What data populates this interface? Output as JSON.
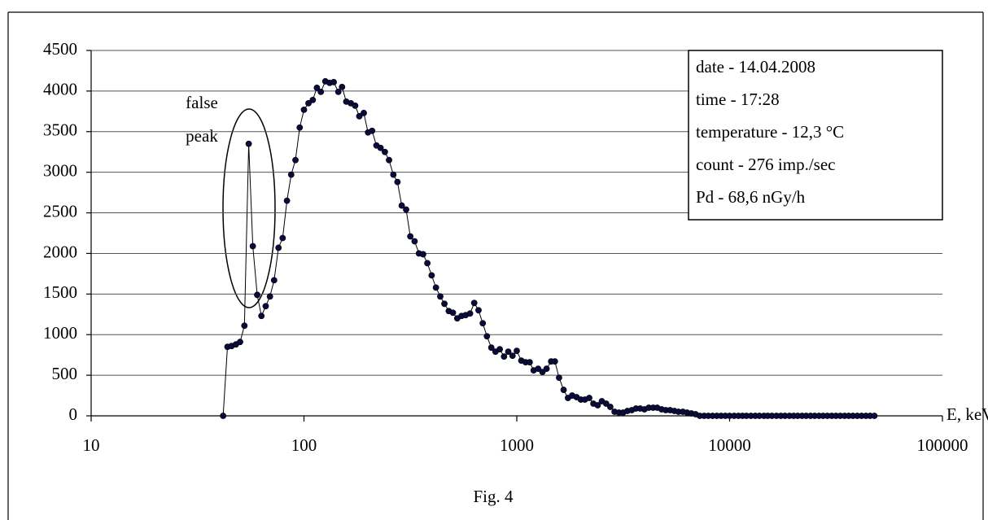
{
  "chart_data": {
    "type": "line",
    "xscale": "log",
    "grid": true,
    "xlabel": "E, keV",
    "caption": "Fig. 4",
    "annotations": [
      "false",
      "peak"
    ],
    "info_box": [
      "date - 14.04.2008",
      "time - 17:28",
      "temperature - 12,3 °C",
      "count - 276 imp./sec",
      "Pd - 68,6 nGy/h"
    ],
    "line_color": "#000000",
    "marker_color": "#0a0a3c",
    "xlim": [
      10,
      100000
    ],
    "xticks": [
      10,
      100,
      1000,
      10000,
      100000
    ],
    "ylim": [
      0,
      4500
    ],
    "yticks": [
      0,
      500,
      1000,
      1500,
      2000,
      2500,
      3000,
      3500,
      4000,
      4500
    ],
    "x": [
      41.7,
      43.7,
      45.7,
      47.9,
      50.1,
      52.5,
      55.0,
      57.5,
      60.3,
      63.1,
      66.1,
      69.2,
      72.4,
      75.9,
      79.4,
      83.2,
      87.1,
      91.2,
      95.5,
      100,
      105,
      110,
      115,
      120,
      126,
      132,
      138,
      145,
      151,
      158,
      166,
      174,
      182,
      191,
      200,
      209,
      219,
      229,
      240,
      251,
      263,
      275,
      288,
      302,
      316,
      331,
      347,
      363,
      380,
      398,
      417,
      437,
      457,
      479,
      501,
      525,
      550,
      575,
      603,
      631,
      661,
      692,
      724,
      759,
      794,
      832,
      871,
      912,
      955,
      1000,
      1050,
      1100,
      1150,
      1200,
      1260,
      1320,
      1380,
      1450,
      1510,
      1580,
      1660,
      1740,
      1820,
      1910,
      2000,
      2090,
      2190,
      2290,
      2400,
      2510,
      2630,
      2750,
      2880,
      3020,
      3160,
      3310,
      3470,
      3630,
      3800,
      3980,
      4170,
      4370,
      4570,
      4790,
      5010,
      5250,
      5500,
      5750,
      6030,
      6310,
      6610,
      6920,
      7240,
      7590,
      7940,
      8320,
      8710,
      9120,
      9550,
      10000,
      10500,
      11000,
      11500,
      12000,
      12600,
      13200,
      13800,
      14500,
      15100,
      15800,
      16600,
      17400,
      18200,
      19100,
      20000,
      20900,
      21900,
      22900,
      24000,
      25100,
      26300,
      27500,
      28800,
      30200,
      31600,
      33100,
      34700,
      36300,
      38000,
      39800,
      41700,
      43700,
      45700,
      47900
    ],
    "values": [
      0,
      850,
      860,
      880,
      910,
      1110,
      3350,
      2090,
      1490,
      1230,
      1350,
      1470,
      1670,
      2070,
      2190,
      2650,
      2970,
      3150,
      3550,
      3770,
      3850,
      3890,
      4040,
      3990,
      4120,
      4100,
      4110,
      3990,
      4050,
      3870,
      3850,
      3820,
      3690,
      3730,
      3490,
      3510,
      3330,
      3300,
      3250,
      3150,
      2970,
      2880,
      2590,
      2540,
      2210,
      2150,
      2000,
      1990,
      1880,
      1730,
      1580,
      1470,
      1380,
      1290,
      1270,
      1200,
      1230,
      1240,
      1260,
      1390,
      1300,
      1140,
      980,
      840,
      790,
      820,
      730,
      790,
      740,
      800,
      680,
      660,
      660,
      560,
      580,
      540,
      580,
      670,
      670,
      470,
      320,
      220,
      250,
      230,
      200,
      200,
      220,
      150,
      130,
      180,
      150,
      110,
      50,
      40,
      40,
      60,
      70,
      90,
      90,
      80,
      100,
      100,
      100,
      80,
      70,
      70,
      60,
      50,
      50,
      40,
      30,
      20,
      0,
      0,
      0,
      0,
      0,
      0,
      0,
      0,
      0,
      0,
      0,
      0,
      0,
      0,
      0,
      0,
      0,
      0,
      0,
      0,
      0,
      0,
      0,
      0,
      0,
      0,
      0,
      0,
      0,
      0,
      0,
      0,
      0,
      0,
      0,
      0,
      0,
      0,
      0,
      0,
      0,
      0
    ]
  }
}
